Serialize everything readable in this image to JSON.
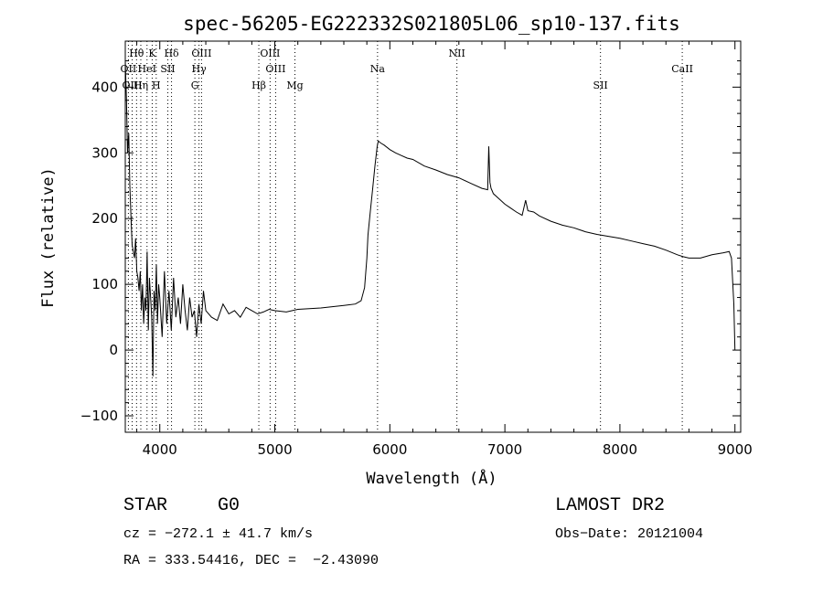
{
  "chart_data": {
    "type": "line",
    "title": "spec-56205-EG222332S021805L06_sp10-137.fits",
    "xlabel": "Wavelength (Å)",
    "ylabel": "Flux (relative)",
    "xlim": [
      3700,
      9050
    ],
    "ylim": [
      -125,
      470
    ],
    "xticks": [
      4000,
      5000,
      6000,
      7000,
      8000,
      9000
    ],
    "yticks": [
      -100,
      0,
      100,
      200,
      300,
      400
    ],
    "grid": false,
    "line_color": "#000000",
    "line_markers": [
      {
        "label": "Hθ",
        "x": 3798,
        "row": 0
      },
      {
        "label": "K",
        "x": 3934,
        "row": 0
      },
      {
        "label": "Hδ",
        "x": 4102,
        "row": 0
      },
      {
        "label": "OIII",
        "x": 4363,
        "row": 0
      },
      {
        "label": "OIII",
        "x": 4959,
        "row": 0
      },
      {
        "label": "NII",
        "x": 6583,
        "row": 0
      },
      {
        "label": "OII",
        "x": 3727,
        "row": 1
      },
      {
        "label": "HeI",
        "x": 3889,
        "row": 1
      },
      {
        "label": "SII",
        "x": 4070,
        "row": 1
      },
      {
        "label": "Hγ",
        "x": 4341,
        "row": 1
      },
      {
        "label": "OIII",
        "x": 5007,
        "row": 1
      },
      {
        "label": "Na",
        "x": 5893,
        "row": 1
      },
      {
        "label": "CaII",
        "x": 8542,
        "row": 1
      },
      {
        "label": "OIII",
        "x": 3760,
        "row": 2
      },
      {
        "label": "Hη",
        "x": 3835,
        "row": 2
      },
      {
        "label": "H",
        "x": 3969,
        "row": 2
      },
      {
        "label": "G",
        "x": 4305,
        "row": 2
      },
      {
        "label": "Hβ",
        "x": 4861,
        "row": 2
      },
      {
        "label": "Mg",
        "x": 5175,
        "row": 2
      },
      {
        "label": "SII",
        "x": 7831,
        "row": 2
      }
    ],
    "x": [
      3700,
      3710,
      3720,
      3730,
      3740,
      3750,
      3760,
      3770,
      3780,
      3790,
      3800,
      3810,
      3820,
      3830,
      3840,
      3850,
      3860,
      3870,
      3880,
      3890,
      3900,
      3910,
      3920,
      3930,
      3940,
      3950,
      3960,
      3970,
      3980,
      3990,
      4000,
      4020,
      4040,
      4060,
      4080,
      4100,
      4120,
      4140,
      4160,
      4180,
      4200,
      4220,
      4240,
      4260,
      4280,
      4300,
      4320,
      4340,
      4360,
      4380,
      4400,
      4450,
      4500,
      4550,
      4600,
      4650,
      4700,
      4750,
      4800,
      4850,
      4900,
      4950,
      5000,
      5100,
      5200,
      5300,
      5400,
      5500,
      5600,
      5700,
      5750,
      5780,
      5800,
      5810,
      5830,
      5850,
      5870,
      5890,
      5900,
      5920,
      5950,
      6000,
      6050,
      6100,
      6150,
      6200,
      6300,
      6400,
      6500,
      6600,
      6700,
      6800,
      6850,
      6860,
      6870,
      6880,
      6890,
      6900,
      6950,
      7000,
      7050,
      7100,
      7150,
      7180,
      7200,
      7250,
      7300,
      7400,
      7500,
      7600,
      7700,
      7800,
      7900,
      8000,
      8100,
      8200,
      8300,
      8400,
      8500,
      8550,
      8600,
      8700,
      8800,
      8900,
      8950,
      8970,
      8990,
      9000
    ],
    "values": [
      440,
      380,
      300,
      330,
      250,
      200,
      160,
      150,
      140,
      170,
      120,
      110,
      90,
      120,
      60,
      100,
      40,
      80,
      60,
      150,
      30,
      110,
      80,
      50,
      -40,
      90,
      60,
      130,
      40,
      100,
      80,
      20,
      120,
      40,
      90,
      30,
      110,
      50,
      80,
      40,
      100,
      60,
      30,
      80,
      50,
      60,
      20,
      70,
      40,
      90,
      60,
      50,
      45,
      70,
      55,
      60,
      50,
      65,
      60,
      55,
      58,
      62,
      60,
      58,
      62,
      63,
      64,
      66,
      68,
      70,
      75,
      95,
      140,
      175,
      210,
      245,
      280,
      310,
      318,
      315,
      312,
      305,
      300,
      296,
      292,
      290,
      280,
      274,
      267,
      262,
      254,
      246,
      244,
      310,
      255,
      246,
      242,
      238,
      230,
      222,
      216,
      210,
      205,
      228,
      212,
      210,
      204,
      196,
      190,
      186,
      180,
      176,
      173,
      170,
      166,
      162,
      158,
      152,
      145,
      142,
      140,
      140,
      145,
      148,
      150,
      140,
      70,
      0
    ]
  },
  "info": {
    "object_class": "STAR",
    "subclass": "G0",
    "survey": "LAMOST DR2",
    "redshift": "cz = −272.1 ± 41.7 km/s",
    "obs_date": "Obs−Date: 20121004",
    "coords": "RA = 333.54416, DEC =  −2.43090"
  }
}
